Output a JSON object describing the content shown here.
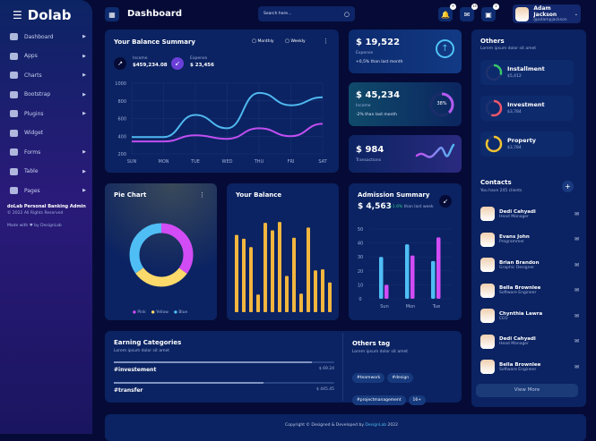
{
  "app": {
    "name": "Dolab"
  },
  "sidebar": {
    "items": [
      {
        "label": "Dashboard"
      },
      {
        "label": "Apps"
      },
      {
        "label": "Charts"
      },
      {
        "label": "Bootstrap"
      },
      {
        "label": "Plugins"
      },
      {
        "label": "Widget"
      },
      {
        "label": "Forms"
      },
      {
        "label": "Table"
      },
      {
        "label": "Pages"
      }
    ],
    "footer_title": "doLab Personal Banking Admin",
    "copyright": "© 2022 All Rights Reserved",
    "made_with": "Made with",
    "by": "by DesignLab"
  },
  "header": {
    "title": "Dashboard",
    "search_placeholder": "Search here...",
    "badges": {
      "bell": "9",
      "mail": "15",
      "calendar": "2"
    },
    "user": {
      "name": "Adam Jackson",
      "handle": "@adampjackson"
    }
  },
  "balance": {
    "title": "Your Balance Summary",
    "options": [
      "Monthly",
      "Weekly"
    ],
    "income_label": "Income",
    "income": "$459,234.08",
    "expense_label": "Expense",
    "expense": "$ 23,456"
  },
  "stats": [
    {
      "value": "$ 19,522",
      "label": "Expense",
      "note": "+0,5% than last month"
    },
    {
      "value": "$ 45,234",
      "label": "Income",
      "note": "-2% than last month",
      "percent": "38%"
    },
    {
      "value": "$ 984",
      "label": "Transactions"
    }
  ],
  "others": {
    "title": "Others",
    "subtitle": "Lorem ipsum dolor sit amet",
    "items": [
      {
        "name": "Installment",
        "value": "$5,412",
        "color": "#35c76a",
        "pct": 30
      },
      {
        "name": "Investment",
        "value": "$3,784",
        "color": "#f0566a",
        "pct": 55
      },
      {
        "name": "Property",
        "value": "$3,784",
        "color": "#f2c230",
        "pct": 85
      }
    ]
  },
  "contacts": {
    "title": "Contacts",
    "subtitle": "You have 245 clients",
    "view_more": "View More",
    "items": [
      {
        "name": "Dedi Cahyadi",
        "role": "Head Manager"
      },
      {
        "name": "Evans John",
        "role": "Programmer"
      },
      {
        "name": "Brian Brandon",
        "role": "Graphic Designer"
      },
      {
        "name": "Bella Brownlee",
        "role": "Software Engineer"
      },
      {
        "name": "Chynthia Lawra",
        "role": "CEO"
      },
      {
        "name": "Dedi Cahyadi",
        "role": "Head Manager"
      },
      {
        "name": "Bella Brownlee",
        "role": "Software Engineer"
      }
    ]
  },
  "pie": {
    "title": "Pie Chart",
    "legend": [
      "Pink",
      "Yellow",
      "Blue"
    ]
  },
  "your_balance": {
    "title": "Your Balance"
  },
  "admission": {
    "title": "Admission Summary",
    "value": "$ 4,563",
    "change": "+1.6%",
    "note": "than last week"
  },
  "earning": {
    "title": "Earning Categories",
    "subtitle": "Lorem ipsum dolor sit amet",
    "rows": [
      {
        "name": "#investement",
        "amount": "$ 69.24",
        "pct": 90
      },
      {
        "name": "#transfer",
        "amount": "$ 445.45",
        "pct": 68
      }
    ]
  },
  "tags": {
    "title": "Others tag",
    "subtitle": "Lorem ipsum dolor sit amet",
    "items": [
      "#teamwork",
      "#design",
      "#projectmanagement",
      "16+"
    ]
  },
  "footer": {
    "text": "Copyright © Designed & Developed by",
    "brand": "DesignLab",
    "year": "2022"
  },
  "chart_data": [
    {
      "type": "line",
      "title": "Your Balance Summary",
      "categories": [
        "SUN",
        "MON",
        "TUE",
        "WED",
        "THU",
        "FRI",
        "SAT"
      ],
      "ylim": [
        200,
        1000
      ],
      "yticks": [
        200,
        400,
        600,
        800,
        1000
      ],
      "series": [
        {
          "name": "Income",
          "color": "#4fb8f0",
          "values": [
            390,
            390,
            640,
            490,
            890,
            750,
            840
          ]
        },
        {
          "name": "Expense",
          "color": "#c04ef0",
          "values": [
            340,
            340,
            410,
            370,
            490,
            400,
            540
          ]
        }
      ]
    },
    {
      "type": "pie",
      "title": "Pie Chart",
      "categories": [
        "Pink",
        "Yellow",
        "Blue"
      ],
      "values": [
        35,
        30,
        35
      ],
      "colors": [
        "#d24cf5",
        "#fbd96a",
        "#4fbef5"
      ]
    },
    {
      "type": "bar",
      "title": "Your Balance",
      "values": [
        83,
        79,
        70,
        19,
        96,
        88,
        97,
        39,
        80,
        20,
        91,
        45,
        46,
        32
      ],
      "color": "#f2b63f"
    },
    {
      "type": "bar",
      "title": "Admission Summary",
      "categories": [
        "Sun",
        "Mon",
        "Tue"
      ],
      "ylim": [
        0,
        50
      ],
      "yticks": [
        0,
        10,
        20,
        30,
        40,
        50
      ],
      "series": [
        {
          "name": "A",
          "color": "#4fbef5",
          "values": [
            30,
            39,
            27
          ]
        },
        {
          "name": "B",
          "color": "#d24cf5",
          "values": [
            10,
            31,
            44
          ]
        }
      ]
    }
  ]
}
